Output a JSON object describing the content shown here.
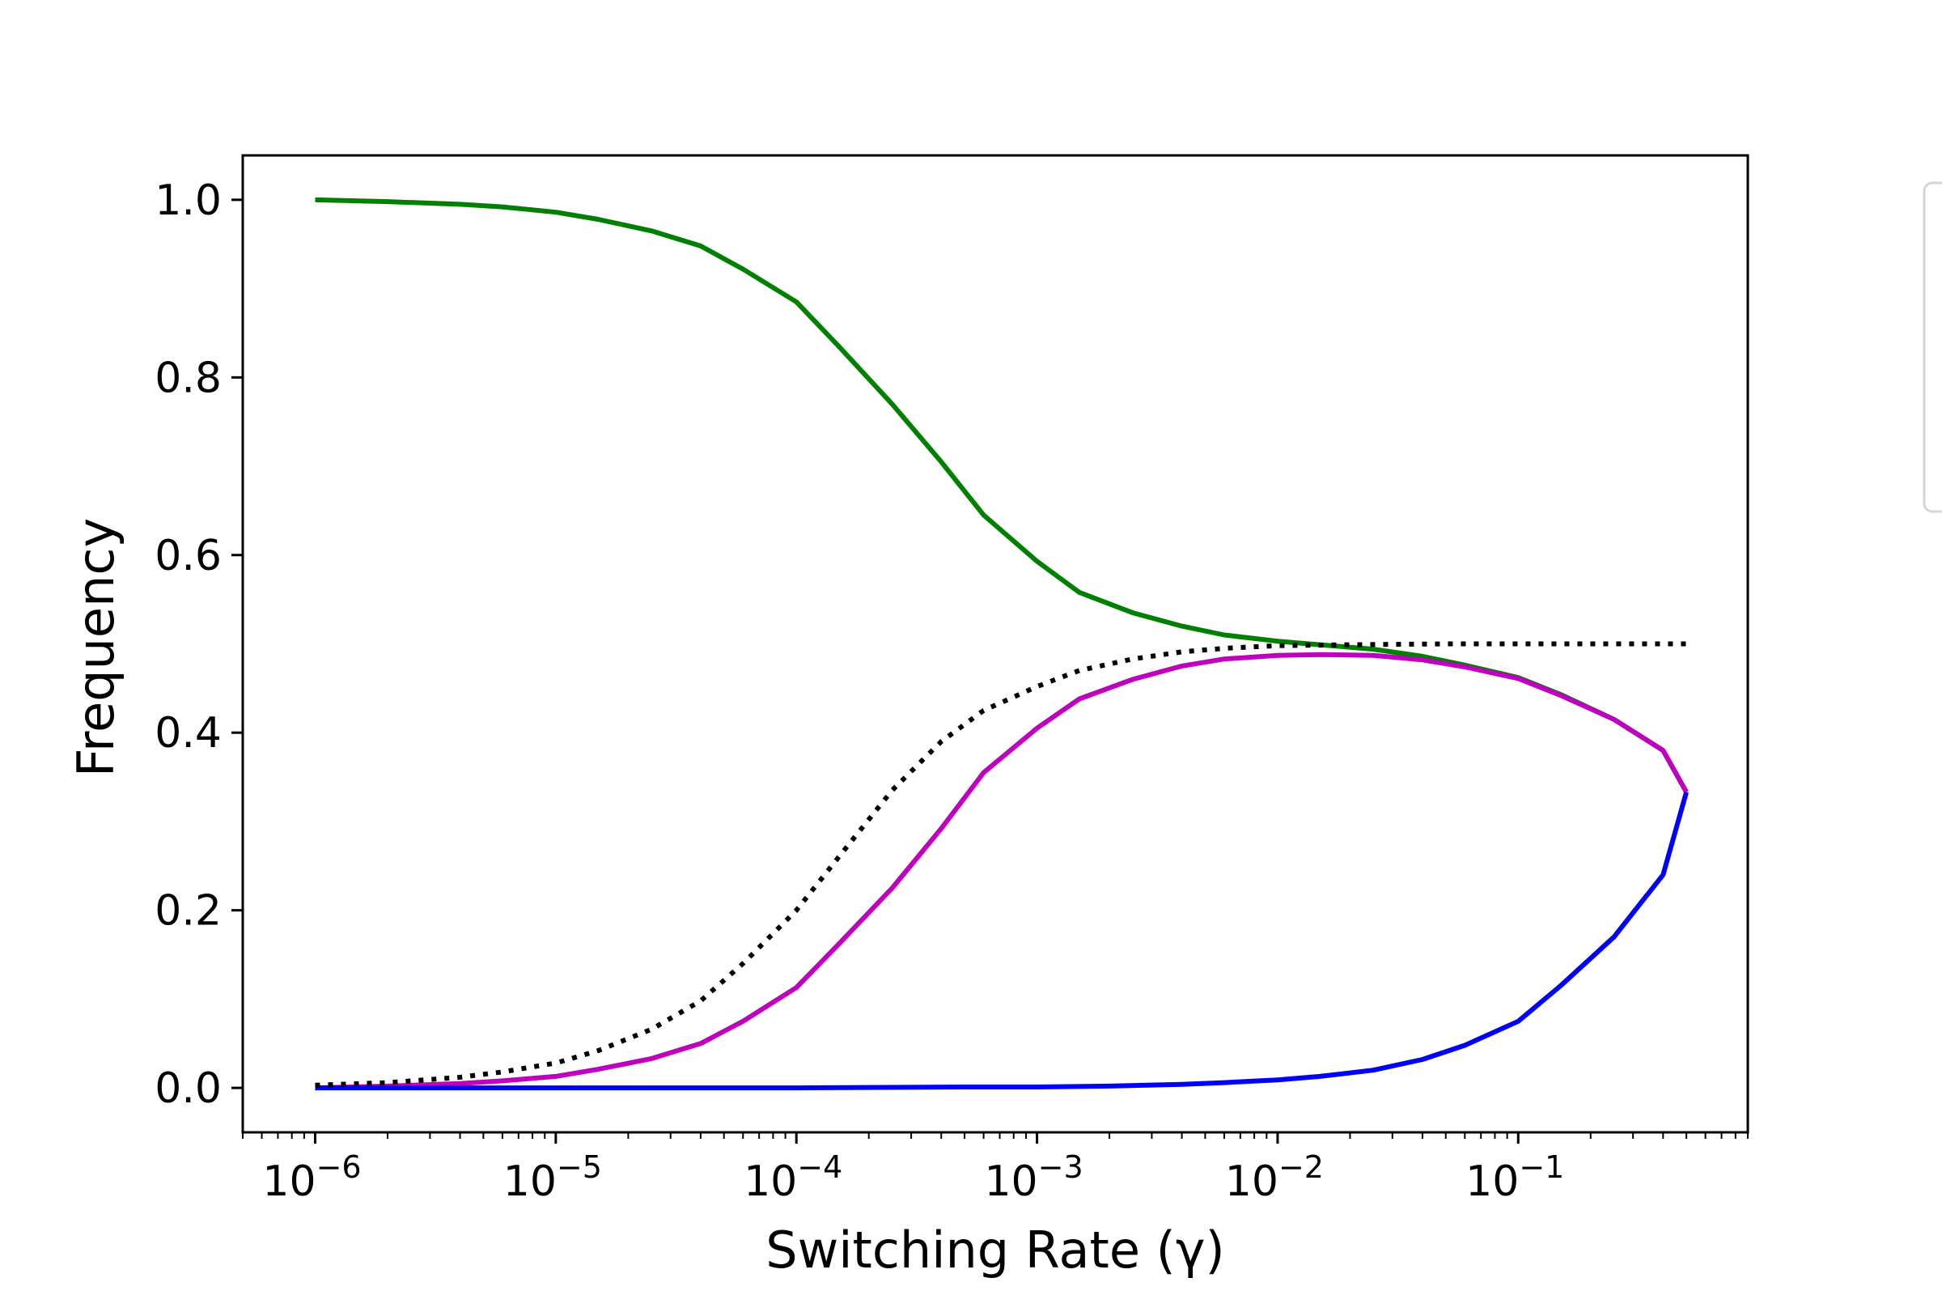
{
  "chart_data": {
    "type": "line",
    "xlabel": "Switching Rate (γ)",
    "ylabel": "Frequency",
    "xscale": "log",
    "xlim": [
      5e-07,
      0.9
    ],
    "ylim": [
      -0.05,
      1.05
    ],
    "grid": false,
    "legend": "right of plot (entries not legible)",
    "x_ticks": [
      {
        "value": 1e-06,
        "base": "10",
        "exp": "−6"
      },
      {
        "value": 1e-05,
        "base": "10",
        "exp": "−5"
      },
      {
        "value": 0.0001,
        "base": "10",
        "exp": "−4"
      },
      {
        "value": 0.001,
        "base": "10",
        "exp": "−3"
      },
      {
        "value": 0.01,
        "base": "10",
        "exp": "−2"
      },
      {
        "value": 0.1,
        "base": "10",
        "exp": "−1"
      }
    ],
    "y_ticks": [
      {
        "value": 0.0,
        "label": "0.0"
      },
      {
        "value": 0.2,
        "label": "0.2"
      },
      {
        "value": 0.4,
        "label": "0.4"
      },
      {
        "value": 0.6,
        "label": "0.6"
      },
      {
        "value": 0.8,
        "label": "0.8"
      },
      {
        "value": 1.0,
        "label": "1.0"
      }
    ],
    "series": [
      {
        "color": "#008000",
        "style": "solid",
        "x": [
          1e-06,
          2e-06,
          4e-06,
          6e-06,
          1e-05,
          1.5e-05,
          2.5e-05,
          4e-05,
          6e-05,
          0.0001,
          0.00015,
          0.00025,
          0.0004,
          0.0006,
          0.001,
          0.0015,
          0.0025,
          0.004,
          0.006,
          0.01,
          0.015,
          0.025,
          0.04,
          0.06,
          0.1,
          0.15,
          0.25,
          0.4,
          0.5
        ],
        "y": [
          1.0,
          0.998,
          0.995,
          0.992,
          0.986,
          0.978,
          0.965,
          0.948,
          0.922,
          0.885,
          0.835,
          0.77,
          0.705,
          0.645,
          0.593,
          0.558,
          0.535,
          0.52,
          0.51,
          0.503,
          0.499,
          0.494,
          0.486,
          0.476,
          0.462,
          0.443,
          0.415,
          0.38,
          0.333
        ]
      },
      {
        "color": "#bf00bf",
        "style": "solid",
        "x": [
          1e-06,
          2e-06,
          4e-06,
          6e-06,
          1e-05,
          1.5e-05,
          2.5e-05,
          4e-05,
          6e-05,
          0.0001,
          0.00015,
          0.00025,
          0.0004,
          0.0006,
          0.001,
          0.0015,
          0.0025,
          0.004,
          0.006,
          0.01,
          0.015,
          0.025,
          0.04,
          0.06,
          0.1,
          0.15,
          0.25,
          0.4,
          0.5
        ],
        "y": [
          0.0,
          0.002,
          0.005,
          0.008,
          0.013,
          0.021,
          0.033,
          0.05,
          0.075,
          0.113,
          0.162,
          0.225,
          0.292,
          0.355,
          0.405,
          0.438,
          0.46,
          0.475,
          0.483,
          0.487,
          0.488,
          0.487,
          0.482,
          0.474,
          0.461,
          0.442,
          0.415,
          0.38,
          0.333
        ]
      },
      {
        "color": "#0000ff",
        "style": "solid",
        "x": [
          1e-06,
          1e-05,
          0.0001,
          0.0005,
          0.001,
          0.002,
          0.004,
          0.006,
          0.01,
          0.015,
          0.025,
          0.04,
          0.06,
          0.1,
          0.15,
          0.25,
          0.4,
          0.5
        ],
        "y": [
          0.0,
          0.0,
          0.0,
          0.001,
          0.001,
          0.002,
          0.004,
          0.006,
          0.009,
          0.013,
          0.02,
          0.032,
          0.048,
          0.075,
          0.115,
          0.17,
          0.24,
          0.333
        ]
      },
      {
        "color": "#000000",
        "style": "dotted",
        "x": [
          1e-06,
          2e-06,
          4e-06,
          6e-06,
          1e-05,
          1.5e-05,
          2.5e-05,
          4e-05,
          6e-05,
          0.0001,
          0.00015,
          0.00025,
          0.0004,
          0.0006,
          0.001,
          0.0015,
          0.0025,
          0.004,
          0.006,
          0.01,
          0.02,
          0.05,
          0.1,
          0.5
        ],
        "y": [
          0.003,
          0.006,
          0.012,
          0.018,
          0.028,
          0.042,
          0.066,
          0.098,
          0.14,
          0.2,
          0.26,
          0.335,
          0.39,
          0.425,
          0.452,
          0.47,
          0.483,
          0.491,
          0.495,
          0.498,
          0.499,
          0.5,
          0.5,
          0.5
        ]
      }
    ]
  }
}
